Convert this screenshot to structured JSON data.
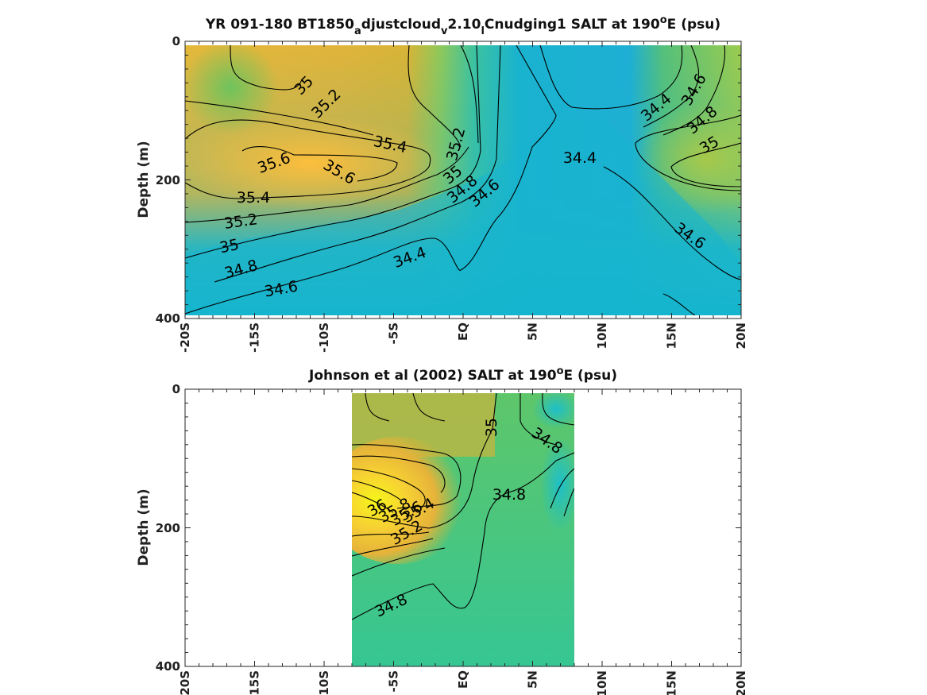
{
  "chart_data": [
    {
      "type": "heatmap",
      "title_main": "YR 091-180 BT1850",
      "title_sub1": "a",
      "title_mid": "djustcloud",
      "title_sub2": "v",
      "title_mid2": "2.10",
      "title_sub3": "l",
      "title_end1": "Cnudging1 SALT at 190",
      "title_sup": "o",
      "title_end2": "E (psu)",
      "ylabel": "Depth (m)",
      "xlabel": "",
      "x_ticks": [
        "-20S",
        "-15S",
        "-10S",
        "-5S",
        "EQ",
        "5N",
        "10N",
        "15N",
        "20N"
      ],
      "y_ticks": [
        "0",
        "200",
        "400"
      ],
      "xlim": [
        -20,
        20
      ],
      "ylim": [
        400,
        0
      ],
      "contour_labels": [
        "35",
        "35.2",
        "35.4",
        "35.6",
        "35.6",
        "35.4",
        "35.2",
        "35",
        "34.8",
        "34.6",
        "35.2",
        "35",
        "34.8",
        "34.6",
        "34.4",
        "34.4",
        "34.4",
        "34.6",
        "34.8",
        "35",
        "34.6"
      ]
    },
    {
      "type": "heatmap",
      "title_main": "Johnson et al (2002) SALT at 190",
      "title_sup": "o",
      "title_end": "E (psu)",
      "ylabel": "Depth (m)",
      "xlabel": "",
      "x_ticks": [
        "-20S",
        "-15S",
        "-10S",
        "-5S",
        "EQ",
        "5N",
        "10N",
        "15N",
        "20N"
      ],
      "y_ticks": [
        "0",
        "200",
        "400"
      ],
      "xlim": [
        -20,
        20
      ],
      "ylim": [
        400,
        0
      ],
      "data_extent_lat": [
        -8,
        8
      ],
      "contour_labels": [
        "35",
        "34.8",
        "34.8",
        "36",
        "35.8",
        "35.6",
        "35.4",
        "35.2",
        "34.8"
      ]
    }
  ]
}
